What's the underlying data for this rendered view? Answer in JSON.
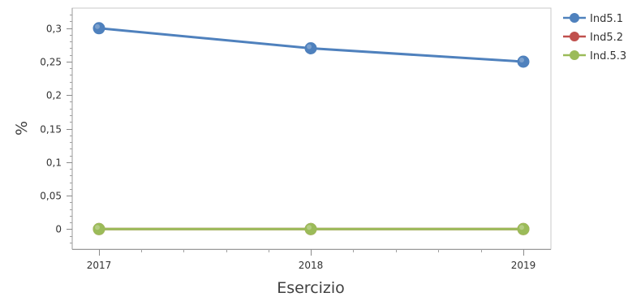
{
  "chart_data": {
    "type": "line",
    "title": "",
    "xlabel": "Esercizio",
    "ylabel": "%",
    "x": [
      "2017",
      "2018",
      "2019"
    ],
    "ylim": [
      -0.03,
      0.33
    ],
    "yticks": [
      0,
      0.05,
      0.1,
      0.15,
      0.2,
      0.25,
      0.3
    ],
    "ytick_labels": [
      "0",
      "0,05",
      "0,1",
      "0,15",
      "0,2",
      "0,25",
      "0,3"
    ],
    "grid": false,
    "legend_position": "right",
    "series": [
      {
        "name": "Ind5.1",
        "values": [
          0.3,
          0.27,
          0.25
        ],
        "color": "#4f81bd"
      },
      {
        "name": "Ind5.2",
        "values": [
          0,
          0,
          0
        ],
        "color": "#c0504d"
      },
      {
        "name": "Ind.5.3",
        "values": [
          0,
          0,
          0
        ],
        "color": "#9bbb59"
      }
    ]
  }
}
